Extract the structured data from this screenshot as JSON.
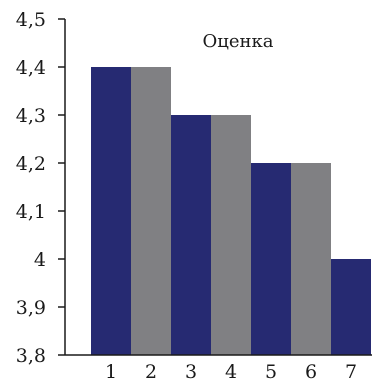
{
  "chart_data": {
    "type": "bar",
    "title": "Оценка",
    "xlabel": "",
    "ylabel": "",
    "categories": [
      "1",
      "2",
      "3",
      "4",
      "5",
      "6",
      "7"
    ],
    "values": [
      4.4,
      4.4,
      4.3,
      4.3,
      4.2,
      4.2,
      4.0
    ],
    "bar_colors": [
      "#262a72",
      "#808083",
      "#262a72",
      "#808083",
      "#262a72",
      "#808083",
      "#262a72"
    ],
    "ylim": [
      3.8,
      4.5
    ],
    "y_ticks": [
      {
        "value": 3.8,
        "label": "3,8"
      },
      {
        "value": 3.9,
        "label": "3,9"
      },
      {
        "value": 4.0,
        "label": "4"
      },
      {
        "value": 4.1,
        "label": "4,1"
      },
      {
        "value": 4.2,
        "label": "4,2"
      },
      {
        "value": 4.3,
        "label": "4,3"
      },
      {
        "value": 4.4,
        "label": "4,4"
      },
      {
        "value": 4.5,
        "label": "4,5"
      }
    ],
    "grid": false,
    "legend": "none"
  }
}
